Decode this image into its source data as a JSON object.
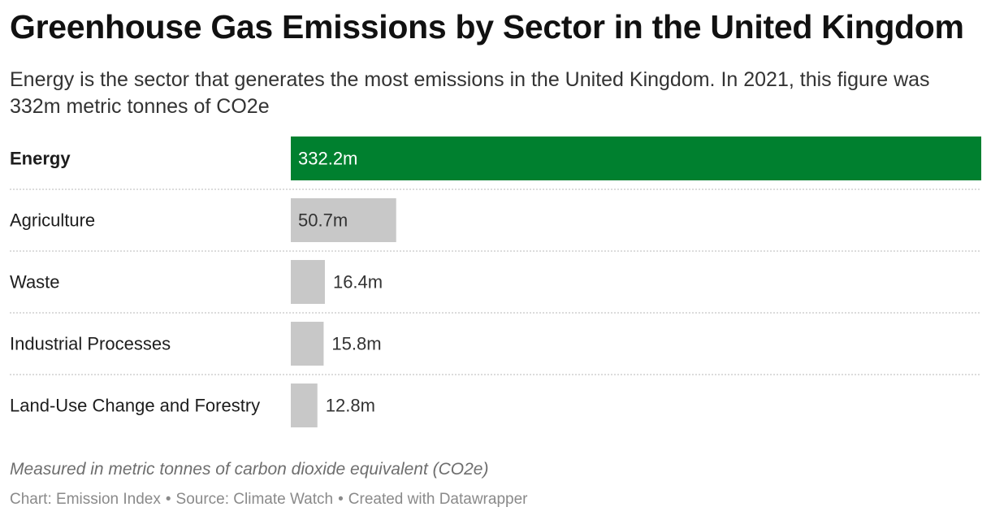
{
  "title": "Greenhouse Gas Emissions by Sector in the United Kingdom",
  "subtitle": "Energy is the sector that generates the most emissions in the United Kingdom. In 2021, this figure was 332m metric tonnes of CO2e",
  "notes": "Measured in metric tonnes of carbon dioxide equivalent (CO2e)",
  "footer": {
    "chart_credit": "Chart: Emission Index",
    "source": "Source: Climate Watch",
    "tool": "Created with Datawrapper",
    "separator": "•"
  },
  "colors": {
    "highlight": "#00802f",
    "default_bar": "#c8c8c8",
    "label_on_highlight": "#ffffff",
    "label_default": "#333333",
    "row_divider": "#d0d0d0"
  },
  "chart_data": {
    "type": "bar",
    "orientation": "horizontal",
    "categories": [
      "Energy",
      "Agriculture",
      "Waste",
      "Industrial Processes",
      "Land-Use Change and Forestry"
    ],
    "values": [
      332.2,
      50.7,
      16.4,
      15.8,
      12.8
    ],
    "value_labels": [
      "332.2m",
      "50.7m",
      "16.4m",
      "15.8m",
      "12.8m"
    ],
    "highlight_index": 0,
    "xlim": [
      0,
      332.2
    ],
    "grid": false,
    "legend": "none"
  }
}
